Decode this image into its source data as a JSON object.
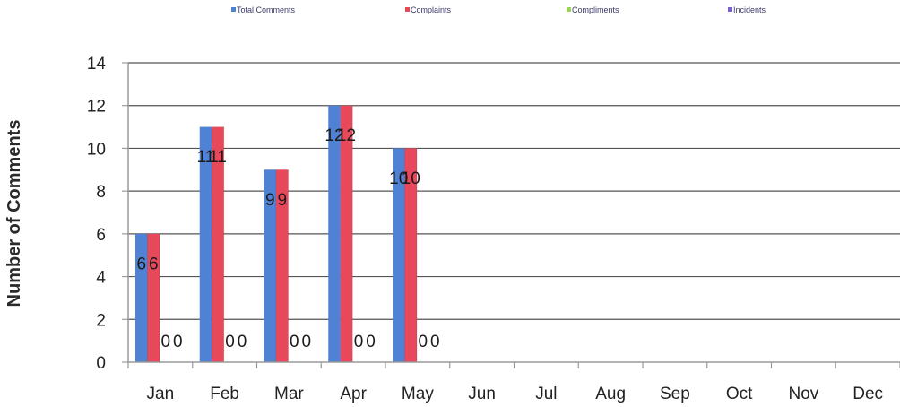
{
  "chart_data": {
    "type": "bar",
    "title": "",
    "xlabel": "",
    "ylabel": "Number of Comments",
    "ylim": [
      0,
      14
    ],
    "yticks": [
      0,
      2,
      4,
      6,
      8,
      10,
      12,
      14
    ],
    "grid": true,
    "legend_position": "top",
    "categories": [
      "Jan",
      "Feb",
      "Mar",
      "Apr",
      "May",
      "Jun",
      "Jul",
      "Aug",
      "Sep",
      "Oct",
      "Nov",
      "Dec"
    ],
    "series": [
      {
        "name": "Total Comments",
        "color": "#4f81d4",
        "values": [
          6,
          11,
          9,
          12,
          10,
          null,
          null,
          null,
          null,
          null,
          null,
          null
        ]
      },
      {
        "name": "Complaints",
        "color": "#e8495a",
        "values": [
          6,
          11,
          9,
          12,
          10,
          null,
          null,
          null,
          null,
          null,
          null,
          null
        ]
      },
      {
        "name": "Compliments",
        "color": "#9bd35a",
        "values": [
          0,
          0,
          0,
          0,
          0,
          null,
          null,
          null,
          null,
          null,
          null,
          null
        ]
      },
      {
        "name": "Incidents",
        "color": "#7a5fd0",
        "values": [
          0,
          0,
          0,
          0,
          0,
          null,
          null,
          null,
          null,
          null,
          null,
          null
        ]
      }
    ]
  }
}
